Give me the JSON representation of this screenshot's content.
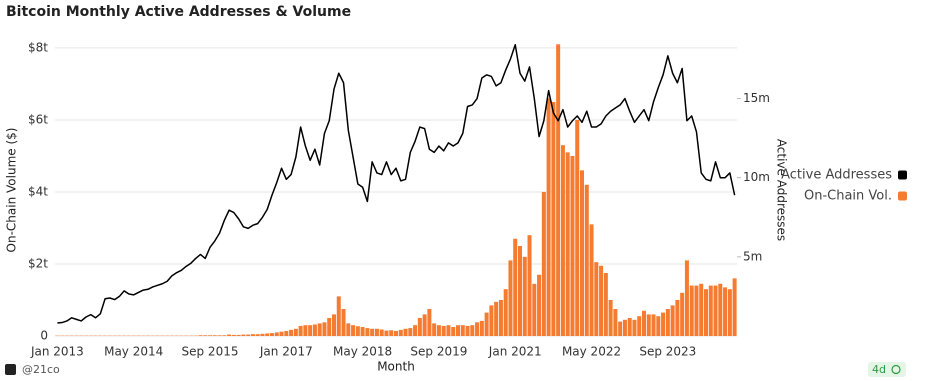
{
  "chart_data": {
    "type": "combo",
    "title": "Bitcoin Monthly Active Addresses & Volume",
    "x_label": "Month",
    "y_label": "On-Chain Volume ($)",
    "y2_label": "Active Addresses",
    "footer": "@21co",
    "badge": "4d",
    "legend": "right",
    "grid": true,
    "categories": [
      "Jan 2013",
      null,
      null,
      null,
      null,
      null,
      null,
      null,
      null,
      null,
      null,
      null,
      null,
      null,
      null,
      null,
      "May 2014",
      null,
      null,
      null,
      null,
      null,
      null,
      null,
      null,
      null,
      null,
      null,
      null,
      null,
      null,
      null,
      "Sep 2015",
      null,
      null,
      null,
      null,
      null,
      null,
      null,
      null,
      null,
      null,
      null,
      null,
      null,
      null,
      null,
      "Jan 2017",
      null,
      null,
      null,
      null,
      null,
      null,
      null,
      null,
      null,
      null,
      null,
      null,
      null,
      null,
      null,
      "May 2018",
      null,
      null,
      null,
      null,
      null,
      null,
      null,
      null,
      null,
      null,
      null,
      null,
      null,
      null,
      null,
      "Sep 2019",
      null,
      null,
      null,
      null,
      null,
      null,
      null,
      null,
      null,
      null,
      null,
      null,
      null,
      null,
      null,
      "Jan 2021",
      null,
      null,
      null,
      null,
      null,
      null,
      null,
      null,
      null,
      null,
      null,
      null,
      null,
      null,
      null,
      "May 2022",
      null,
      null,
      null,
      null,
      null,
      null,
      null,
      null,
      null,
      null,
      null,
      null,
      null,
      null,
      null,
      "Sep 2023",
      null,
      null,
      null,
      null,
      null,
      null,
      null,
      null,
      null,
      null,
      null,
      null,
      null,
      null
    ],
    "ylim": [
      0,
      8.22
    ],
    "yticks": [
      0,
      {
        "value": 2,
        "label": "$2t"
      },
      {
        "value": 4,
        "label": "$4t"
      },
      {
        "value": 6,
        "label": "$6t"
      },
      {
        "value": 8,
        "label": "$8t"
      }
    ],
    "y2lim": [
      0,
      18.7
    ],
    "y2ticks": [
      {
        "value": 5,
        "label": "5m"
      },
      {
        "value": 10,
        "label": "10m"
      },
      {
        "value": 15,
        "label": "15m"
      }
    ],
    "series": [
      {
        "name": "Active Addresses",
        "type": "line",
        "axis": "y2",
        "color": "#000000",
        "values": [
          0.82,
          0.85,
          0.95,
          1.15,
          1.05,
          0.95,
          1.2,
          1.35,
          1.15,
          1.4,
          2.35,
          2.4,
          2.3,
          2.5,
          2.85,
          2.65,
          2.6,
          2.75,
          2.9,
          2.95,
          3.1,
          3.2,
          3.3,
          3.45,
          3.8,
          4.0,
          4.15,
          4.4,
          4.6,
          4.9,
          5.15,
          4.9,
          5.6,
          6.0,
          6.5,
          7.3,
          7.95,
          7.8,
          7.4,
          6.9,
          6.8,
          7.0,
          7.1,
          7.5,
          8.0,
          8.9,
          9.7,
          10.6,
          9.9,
          10.2,
          11.3,
          13.2,
          12.0,
          11.1,
          11.8,
          10.8,
          12.8,
          13.6,
          15.6,
          16.6,
          16.0,
          13.0,
          11.3,
          9.6,
          9.4,
          8.5,
          11.0,
          10.3,
          10.2,
          11.0,
          10.2,
          10.6,
          9.8,
          9.9,
          11.6,
          12.3,
          13.2,
          13.1,
          11.8,
          11.6,
          12.0,
          11.7,
          12.2,
          12.0,
          12.2,
          12.8,
          14.5,
          14.6,
          15.0,
          16.3,
          16.5,
          16.4,
          15.8,
          16.0,
          16.8,
          17.5,
          18.4,
          16.6,
          16.1,
          17.0,
          15.0,
          12.6,
          13.6,
          15.5,
          14.1,
          13.6,
          14.3,
          13.2,
          13.6,
          13.9,
          13.5,
          14.2,
          13.2,
          13.2,
          13.4,
          13.9,
          14.2,
          14.4,
          14.6,
          15.0,
          14.2,
          13.5,
          13.9,
          14.3,
          13.6,
          14.8,
          15.7,
          16.5,
          17.7,
          16.6,
          16.0,
          16.9,
          13.6,
          13.9,
          12.9,
          10.3,
          9.9,
          9.8,
          11.0,
          10.0,
          10.0,
          10.3,
          8.9
        ]
      },
      {
        "name": "On-Chain Vol.",
        "type": "bar",
        "axis": "y",
        "color": "#f47b30",
        "values": [
          0.01,
          0.01,
          0.01,
          0.01,
          0.01,
          0.01,
          0.01,
          0.01,
          0.01,
          0.01,
          0.01,
          0.01,
          0.01,
          0.01,
          0.01,
          0.01,
          0.01,
          0.01,
          0.01,
          0.01,
          0.01,
          0.01,
          0.01,
          0.01,
          0.01,
          0.01,
          0.01,
          0.01,
          0.01,
          0.01,
          0.02,
          0.02,
          0.02,
          0.02,
          0.02,
          0.02,
          0.04,
          0.03,
          0.03,
          0.04,
          0.04,
          0.05,
          0.05,
          0.06,
          0.07,
          0.08,
          0.1,
          0.12,
          0.14,
          0.17,
          0.2,
          0.28,
          0.3,
          0.3,
          0.32,
          0.35,
          0.38,
          0.5,
          0.6,
          1.1,
          0.75,
          0.35,
          0.3,
          0.27,
          0.25,
          0.22,
          0.2,
          0.2,
          0.18,
          0.15,
          0.16,
          0.14,
          0.17,
          0.2,
          0.22,
          0.3,
          0.5,
          0.6,
          0.75,
          0.35,
          0.3,
          0.28,
          0.3,
          0.25,
          0.3,
          0.3,
          0.28,
          0.3,
          0.38,
          0.42,
          0.65,
          0.85,
          0.95,
          1.0,
          1.3,
          2.1,
          2.7,
          2.5,
          2.2,
          2.8,
          1.45,
          1.7,
          4.0,
          6.6,
          6.5,
          8.1,
          5.3,
          5.1,
          5.0,
          6.0,
          4.6,
          4.2,
          3.1,
          2.05,
          1.95,
          1.75,
          1.0,
          0.75,
          0.4,
          0.45,
          0.5,
          0.45,
          0.55,
          0.7,
          0.6,
          0.6,
          0.55,
          0.65,
          0.75,
          0.85,
          1.0,
          1.2,
          2.1,
          1.4,
          1.4,
          1.45,
          1.3,
          1.4,
          1.4,
          1.45,
          1.35,
          1.3,
          1.6
        ]
      }
    ]
  }
}
